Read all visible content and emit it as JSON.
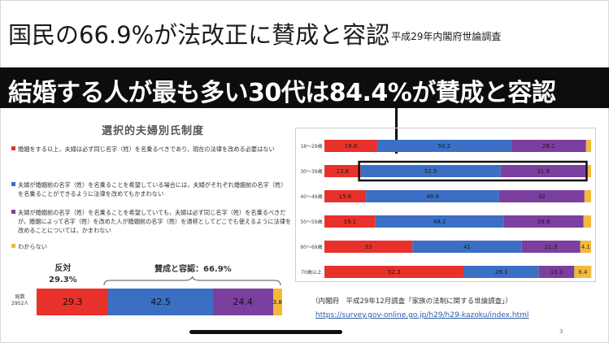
{
  "slide": {
    "title": "国民の66.9%が法改正に賛成と容認",
    "subtitle": "平成29年内閣府世論調査",
    "banner": "結婚する人が最も多い30代は84.4%が賛成と容認",
    "page_number": "3",
    "source_label": "（内閣府　平成29年12月調査「家族の法制に関する世論調査」）",
    "source_url": "https://survey.gov-online.go.jp/h29/h29-kazoku/index.html"
  },
  "colors": {
    "red": "#e8312b",
    "blue": "#3a6fc4",
    "purple": "#7b3fa0",
    "yellow": "#f2b93b"
  },
  "left_panel": {
    "title": "選択的夫婦別氏制度",
    "legend": [
      "婚姻をする以上，夫婦は必ず同じ名字（姓）を名乗るべきであり，現在の法律を改める必要はない",
      "夫婦が婚姻前の名字（姓）を名乗ることを希望している場合には，夫婦がそれぞれ婚姻前の名字（姓）を名乗ることができるように法律を改めてもかまわない",
      "夫婦が婚姻前の名字（姓）を名乗ることを希望していても，夫婦は必ず同じ名字（姓）を名乗るべきだが，婚姻によって名字（姓）を改めた人が婚姻前の名字（姓）を通称としてどこでも使えるように法律を改めることについては，かまわない",
      "わからない"
    ],
    "oppose_label": "反対",
    "oppose_value": "29.3%",
    "approve_label": "賛成と容認：66.9%",
    "total_label": "総数",
    "total_n": "2952人"
  },
  "chart_data": [
    {
      "type": "bar",
      "orientation": "horizontal",
      "stacked": true,
      "categories": [
        "総数"
      ],
      "series": [
        {
          "color": "#e8312b",
          "values": [
            29.3
          ]
        },
        {
          "color": "#3a6fc4",
          "values": [
            42.5
          ]
        },
        {
          "color": "#7b3fa0",
          "values": [
            24.4
          ]
        },
        {
          "color": "#f2b93b",
          "values": [
            3.8
          ]
        }
      ]
    },
    {
      "type": "bar",
      "orientation": "horizontal",
      "stacked": true,
      "categories": [
        "18～29歳",
        "30～39歳",
        "40～49歳",
        "50～59歳",
        "60～69歳",
        "70歳以上"
      ],
      "series": [
        {
          "color": "#e8312b",
          "values": [
            19.8,
            13.6,
            15.6,
            19.1,
            33,
            52.3
          ]
        },
        {
          "color": "#3a6fc4",
          "values": [
            50.2,
            52.5,
            49.9,
            48.2,
            41,
            28.1
          ]
        },
        {
          "color": "#7b3fa0",
          "values": [
            28.1,
            31.9,
            32,
            29.8,
            21.9,
            13.3
          ]
        },
        {
          "color": "#f2b93b",
          "values": [
            1.9,
            2.0,
            2.5,
            2.9,
            4.1,
            6.4
          ]
        }
      ],
      "highlighted_category": "30～39歳"
    }
  ]
}
